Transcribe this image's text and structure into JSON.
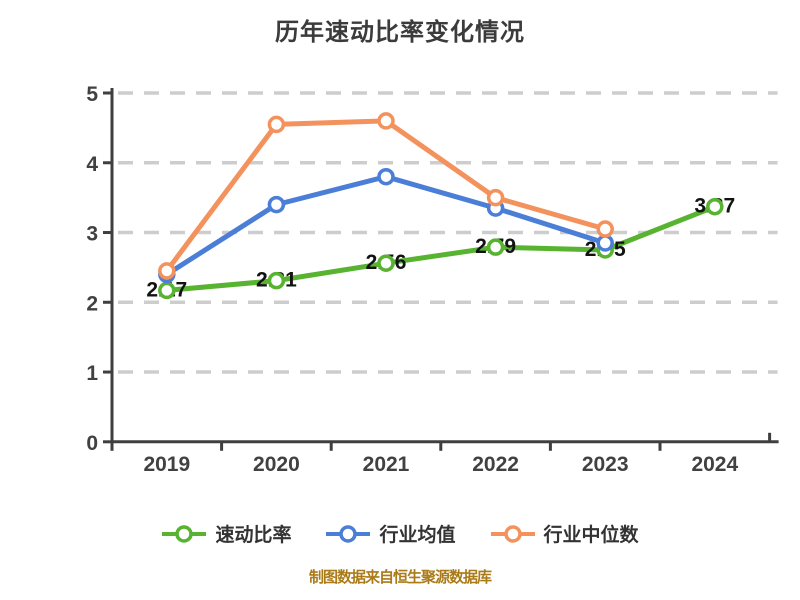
{
  "title": "历年速动比率变化情况",
  "chart_data": {
    "type": "line",
    "title": "历年速动比率变化情况",
    "categories": [
      "2019",
      "2020",
      "2021",
      "2022",
      "2023",
      "2024"
    ],
    "series": [
      {
        "name": "速动比率",
        "color": "#57b330",
        "values": [
          2.17,
          2.31,
          2.56,
          2.79,
          2.75,
          3.37
        ],
        "point_labels": [
          "2.17",
          "2.31",
          "2.56",
          "2.79",
          "2.75",
          "3.37"
        ]
      },
      {
        "name": "行业均值",
        "color": "#4b7ed6",
        "values": [
          2.4,
          3.4,
          3.8,
          3.35,
          2.85,
          null
        ],
        "point_labels": null
      },
      {
        "name": "行业中位数",
        "color": "#f3925d",
        "values": [
          2.45,
          4.55,
          4.6,
          3.5,
          3.05,
          null
        ],
        "point_labels": null
      }
    ],
    "ylim": [
      0,
      5
    ],
    "yticks": [
      0,
      1,
      2,
      3,
      4,
      5
    ],
    "xlabel": "",
    "ylabel": "",
    "grid": "horizontal-dashed",
    "legend_position": "bottom",
    "marker": "open-circle"
  },
  "legend": {
    "items": [
      {
        "label": "速动比率",
        "color": "#57b330"
      },
      {
        "label": "行业均值",
        "color": "#4b7ed6"
      },
      {
        "label": "行业中位数",
        "color": "#f3925d"
      }
    ]
  },
  "footer": {
    "caption": "制图数据来自恒生聚源数据库",
    "caption_color": "#aa7b18"
  },
  "style_colors": {
    "grid_line": "#cdcdcd",
    "axis_line": "#3f3f3f",
    "tick_label": "#414141",
    "title_text": "#3b3b3b",
    "point_label": "#121212",
    "marker_fill": "#ffffff"
  }
}
